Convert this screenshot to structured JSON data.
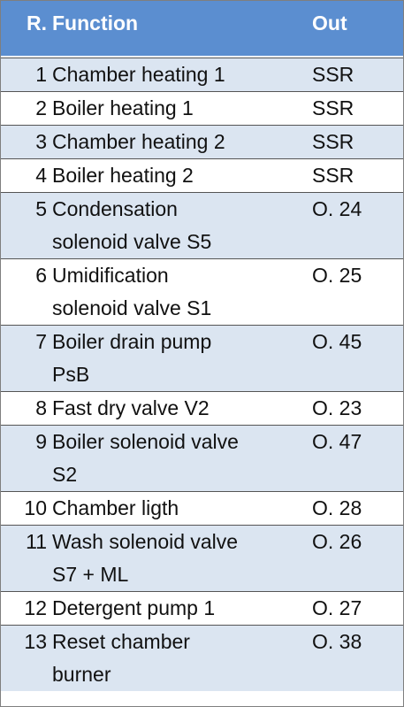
{
  "table": {
    "header": [
      "R.",
      "Function",
      "Out"
    ],
    "rows": [
      [
        "1",
        [
          "Chamber heating 1"
        ],
        "SSR"
      ],
      [
        "2",
        [
          "Boiler heating 1"
        ],
        "SSR"
      ],
      [
        "3",
        [
          "Chamber heating 2"
        ],
        "SSR"
      ],
      [
        "4",
        [
          "Boiler heating 2"
        ],
        "SSR"
      ],
      [
        "5",
        [
          "Condensation",
          "solenoid valve S5"
        ],
        "O. 24"
      ],
      [
        "6",
        [
          "Umidification",
          "solenoid valve S1"
        ],
        "O. 25"
      ],
      [
        "7",
        [
          "Boiler drain pump",
          "PsB"
        ],
        "O. 45"
      ],
      [
        "8",
        [
          "Fast dry valve V2"
        ],
        "O. 23"
      ],
      [
        "9",
        [
          "Boiler solenoid valve",
          "S2"
        ],
        "O. 47"
      ],
      [
        "10",
        [
          "Chamber ligth"
        ],
        "O. 28"
      ],
      [
        "11",
        [
          "Wash solenoid valve",
          "S7 + ML"
        ],
        "O. 26"
      ],
      [
        "12",
        [
          "Detergent pump 1"
        ],
        "O. 27"
      ],
      [
        "13",
        [
          "Reset chamber",
          "burner"
        ],
        "O. 38"
      ]
    ]
  }
}
